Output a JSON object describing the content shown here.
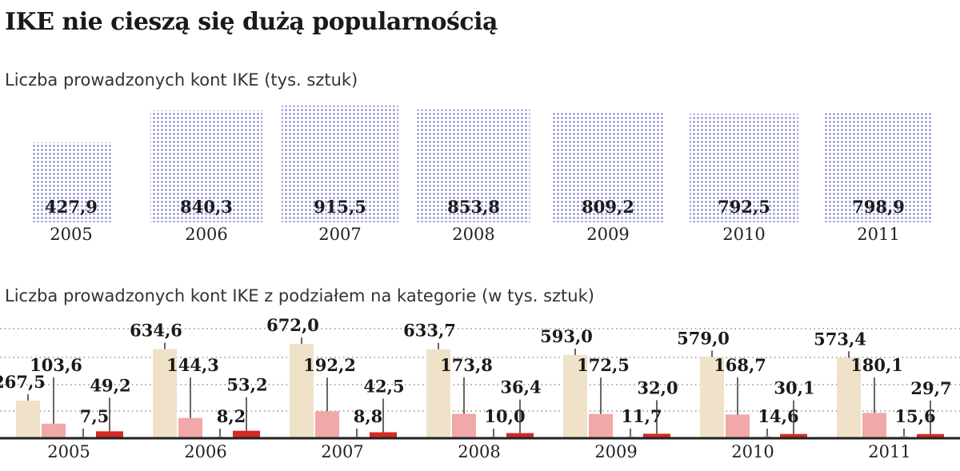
{
  "title": "IKE nie cieszą się dużą popularnością",
  "colors": {
    "dots": "#8f8fd6",
    "cat1": "#efe2c8",
    "cat2": "#f0a8a8",
    "cat3": "#b8b8ec",
    "cat4": "#d42a24",
    "axis": "#222222"
  },
  "chart_data": [
    {
      "type": "bar",
      "subtitle": "Liczba prowadzonych kont IKE (tys. sztuk)",
      "categories": [
        "2005",
        "2006",
        "2007",
        "2008",
        "2009",
        "2010",
        "2011"
      ],
      "values": [
        427.9,
        840.3,
        915.5,
        853.8,
        809.2,
        792.5,
        798.9
      ],
      "value_labels": [
        "427,9",
        "840,3",
        "915,5",
        "853,8",
        "809,2",
        "792,5",
        "798,9"
      ],
      "xlabel": "",
      "ylabel": ""
    },
    {
      "type": "bar",
      "subtitle": "Liczba prowadzonych kont IKE z podziałem na kategorie (w tys. sztuk)",
      "categories": [
        "2005",
        "2006",
        "2007",
        "2008",
        "2009",
        "2010",
        "2011"
      ],
      "series": [
        {
          "values": [
            267.5,
            634.6,
            672.0,
            633.7,
            593.0,
            579.0,
            573.4
          ],
          "labels": [
            "267,5",
            "634,6",
            "672,0",
            "633,7",
            "593,0",
            "579,0",
            "573,4"
          ]
        },
        {
          "values": [
            103.6,
            144.3,
            192.2,
            173.8,
            172.5,
            168.7,
            180.1
          ],
          "labels": [
            "103,6",
            "144,3",
            "192,2",
            "173,8",
            "172,5",
            "168,7",
            "180,1"
          ]
        },
        {
          "values": [
            7.5,
            8.2,
            8.8,
            10.0,
            11.7,
            14.6,
            15.6
          ],
          "labels": [
            "7,5",
            "8,2",
            "8,8",
            "10,0",
            "11,7",
            "14,6",
            "15,6"
          ]
        },
        {
          "values": [
            49.2,
            53.2,
            42.5,
            36.4,
            32.0,
            30.1,
            29.7
          ],
          "labels": [
            "49,2",
            "53,2",
            "42,5",
            "36,4",
            "32,0",
            "30,1",
            "29,7"
          ]
        }
      ],
      "grid": true,
      "xlabel": "",
      "ylabel": ""
    }
  ]
}
